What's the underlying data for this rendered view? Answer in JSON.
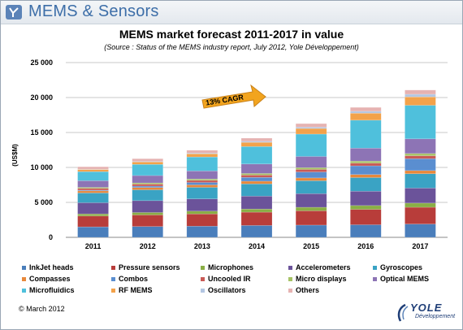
{
  "banner": {
    "title": "MEMS & Sensors"
  },
  "chart_data": {
    "type": "bar",
    "stacked": true,
    "title": "MEMS market forecast 2011-2017 in value",
    "subtitle": "(Source : Status of the MEMS industry report, July 2012, Yole Développement)",
    "ylabel": "(US$M)",
    "xlabel": "",
    "ylim": [
      0,
      25000
    ],
    "yticks": [
      0,
      5000,
      10000,
      15000,
      20000,
      25000
    ],
    "ytick_labels": [
      "0",
      "5 000",
      "10 000",
      "15 000",
      "20 000",
      "25 000"
    ],
    "grid": true,
    "legend_position": "bottom",
    "categories": [
      "2011",
      "2012",
      "2013",
      "2014",
      "2015",
      "2016",
      "2017"
    ],
    "annotation": "13% CAGR",
    "series": [
      {
        "name": "InkJet heads",
        "color": "#4a7ebb",
        "values": [
          1500,
          1550,
          1600,
          1700,
          1750,
          1800,
          1900
        ]
      },
      {
        "name": "Pressure sensors",
        "color": "#b83d3a",
        "values": [
          1550,
          1650,
          1750,
          1900,
          2050,
          2200,
          2400
        ]
      },
      {
        "name": "Microphones",
        "color": "#8aae45",
        "values": [
          300,
          350,
          400,
          450,
          500,
          550,
          600
        ]
      },
      {
        "name": "Accelerometers",
        "color": "#6b539a",
        "values": [
          1600,
          1700,
          1750,
          1850,
          1950,
          2050,
          2150
        ]
      },
      {
        "name": "Gyroscopes",
        "color": "#3aa3c4",
        "values": [
          1400,
          1550,
          1650,
          1750,
          1850,
          1950,
          2050
        ]
      },
      {
        "name": "Compasses",
        "color": "#e8883b",
        "values": [
          300,
          330,
          350,
          380,
          400,
          430,
          450
        ]
      },
      {
        "name": "Combos",
        "color": "#5a8ed0",
        "values": [
          100,
          200,
          350,
          550,
          850,
          1250,
          1700
        ]
      },
      {
        "name": "Uncooled IR",
        "color": "#c95a56",
        "values": [
          250,
          280,
          300,
          330,
          360,
          390,
          420
        ]
      },
      {
        "name": "Micro displays",
        "color": "#a6c365",
        "values": [
          150,
          180,
          200,
          230,
          260,
          290,
          320
        ]
      },
      {
        "name": "Optical MEMS",
        "color": "#8d74b5",
        "values": [
          950,
          1050,
          1150,
          1350,
          1600,
          1850,
          2100
        ]
      },
      {
        "name": "Microfluidics",
        "color": "#4fc0dc",
        "values": [
          1300,
          1600,
          2000,
          2500,
          3200,
          4000,
          4800
        ]
      },
      {
        "name": "RF MEMS",
        "color": "#f3a24a",
        "values": [
          300,
          350,
          450,
          600,
          800,
          1000,
          1200
        ]
      },
      {
        "name": "Oscillators",
        "color": "#b3c6e2",
        "values": [
          50,
          80,
          110,
          150,
          200,
          280,
          380
        ]
      },
      {
        "name": "Others",
        "color": "#e6b3b2",
        "values": [
          350,
          380,
          400,
          450,
          500,
          550,
          600
        ]
      }
    ]
  },
  "footer": {
    "copyright": "© March 2012",
    "brand": "YOLE",
    "brand_sub": "Développement"
  }
}
